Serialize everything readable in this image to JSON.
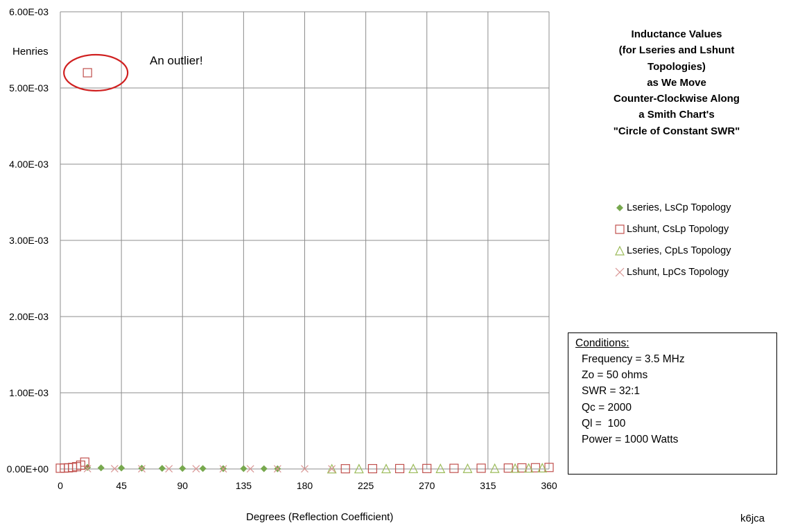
{
  "chart_data": {
    "type": "scatter",
    "title_lines": [
      "Inductance Values",
      "(for Lseries and Lshunt",
      "Topologies)",
      "as We Move",
      "Counter-Clockwise Along",
      "a Smith Chart's",
      "\"Circle of Constant SWR\""
    ],
    "xlabel": "Degrees (Reflection Coefficient)",
    "ylabel": "Henries",
    "xlim": [
      0,
      360
    ],
    "ylim": [
      0,
      0.006
    ],
    "x_ticks": [
      0,
      45,
      90,
      135,
      180,
      225,
      270,
      315,
      360
    ],
    "x_tick_labels": [
      "0",
      "45",
      "90",
      "135",
      "180",
      "225",
      "270",
      "315",
      "360"
    ],
    "y_ticks": [
      0,
      0.001,
      0.002,
      0.003,
      0.004,
      0.005,
      0.006
    ],
    "y_tick_labels": [
      "0.00E+00",
      "1.00E-03",
      "2.00E-03",
      "3.00E-03",
      "4.00E-03",
      "5.00E-03",
      "6.00E-03"
    ],
    "grid": true,
    "legend_position": "right",
    "series": [
      {
        "name": "Lseries, LsCp Topology",
        "marker": "diamond",
        "color": "#77a84e",
        "x": [
          20,
          30,
          45,
          60,
          75,
          90,
          105,
          120,
          135,
          150,
          160
        ],
        "y": [
          2e-05,
          1.5e-05,
          1.2e-05,
          1e-05,
          8e-06,
          7e-06,
          6e-06,
          5e-06,
          4e-06,
          3e-06,
          2e-06
        ]
      },
      {
        "name": "Lshunt, CsLp Topology",
        "marker": "square",
        "color": "#c0504d",
        "x": [
          0,
          3,
          6,
          9,
          12,
          15,
          18,
          20,
          210,
          230,
          250,
          270,
          290,
          310,
          330,
          340,
          350,
          360
        ],
        "y": [
          1e-05,
          1.2e-05,
          1.5e-05,
          2e-05,
          3e-05,
          5e-05,
          9e-05,
          0.0052,
          3e-06,
          4e-06,
          5e-06,
          6e-06,
          8e-06,
          1e-05,
          1.2e-05,
          1.4e-05,
          1.6e-05,
          2e-05
        ]
      },
      {
        "name": "Lseries, CpLs Topology",
        "marker": "triangle",
        "color": "#9bbb59",
        "x": [
          200,
          220,
          240,
          260,
          280,
          300,
          320,
          335,
          345,
          355
        ],
        "y": [
          2e-06,
          3e-06,
          4e-06,
          5e-06,
          6e-06,
          7e-06,
          8e-06,
          1e-05,
          1.2e-05,
          1.5e-05
        ]
      },
      {
        "name": "Lshunt, LpCs Topology",
        "marker": "x",
        "color": "#d99694",
        "x": [
          20,
          40,
          60,
          80,
          100,
          120,
          140,
          160,
          180,
          200
        ],
        "y": [
          4e-06,
          4e-06,
          3e-06,
          3e-06,
          3e-06,
          2e-06,
          2e-06,
          2e-06,
          2e-06,
          2e-06
        ]
      }
    ],
    "annotations": [
      {
        "text": "An outlier!",
        "target_series": "Lshunt, CsLp Topology",
        "target_x": 20,
        "target_y": 0.0052,
        "circle_color": "#d02020"
      }
    ],
    "conditions": {
      "heading": "Conditions:",
      "lines": [
        "Frequency = 3.5 MHz",
        "Zo = 50 ohms",
        "SWR = 32:1",
        "Qc = 2000",
        "Ql =  100",
        "Power = 1000 Watts"
      ]
    },
    "credit": "k6jca"
  }
}
